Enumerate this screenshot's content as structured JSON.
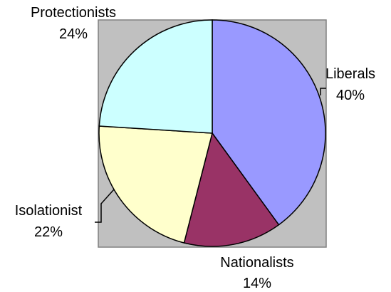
{
  "chart_data": {
    "type": "pie",
    "title": "",
    "slices": [
      {
        "label": "Liberals",
        "value": 40,
        "display": "40%",
        "color": "#9999ff"
      },
      {
        "label": "Nationalists",
        "value": 14,
        "display": "14%",
        "color": "#993366"
      },
      {
        "label": "Isolationist",
        "value": 22,
        "display": "22%",
        "color": "#ffffcc"
      },
      {
        "label": "Protectionists",
        "value": 24,
        "display": "24%",
        "color": "#ccffff"
      }
    ],
    "start_angle": "12 o'clock",
    "direction": "clockwise",
    "plot_background": "#c0c0c0",
    "legend": "none",
    "grid": false
  }
}
